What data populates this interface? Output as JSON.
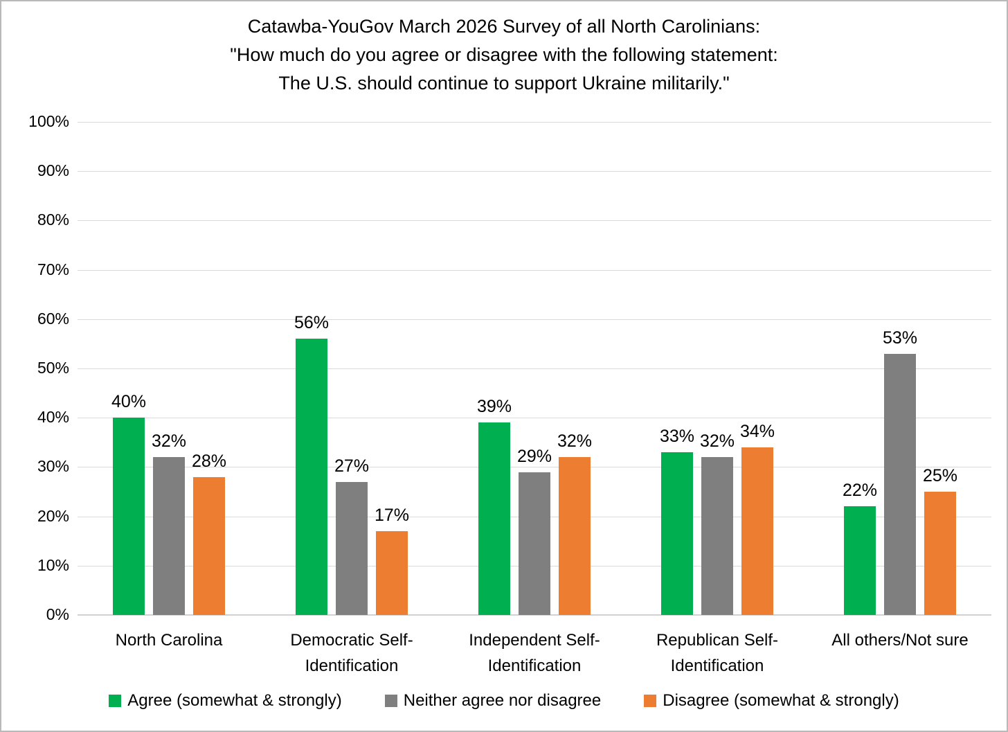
{
  "title": {
    "line1": "Catawba-YouGov March 2026 Survey of all North Carolinians:",
    "line2": "\"How much do you agree or disagree with the following statement:",
    "line3": "The U.S. should continue to support Ukraine militarily.\""
  },
  "chart_data": {
    "type": "bar",
    "title": "Catawba-YouGov March 2026 Survey of all North Carolinians: \"How much do you agree or disagree with the following statement: The U.S. should continue to support Ukraine militarily.\"",
    "categories": [
      "North Carolina",
      "Democratic Self-Identification",
      "Independent Self-Identification",
      "Republican Self-Identification",
      "All others/Not sure"
    ],
    "categories_display": [
      "North Carolina",
      "Democratic Self-\nIdentification",
      "Independent Self-\nIdentification",
      "Republican Self-\nIdentification",
      "All others/Not sure"
    ],
    "series": [
      {
        "name": "Agree (somewhat & strongly)",
        "color": "#00B050",
        "values": [
          40,
          56,
          39,
          33,
          22
        ]
      },
      {
        "name": "Neither agree nor disagree",
        "color": "#7F7F7F",
        "values": [
          32,
          27,
          29,
          32,
          53
        ]
      },
      {
        "name": "Disagree (somewhat & strongly)",
        "color": "#ED7D31",
        "values": [
          28,
          17,
          32,
          34,
          25
        ]
      }
    ],
    "data_label_suffix": "%",
    "xlabel": "",
    "ylabel": "",
    "ylim": [
      0,
      100
    ],
    "ytick_step": 10,
    "ytick_labels": [
      "0%",
      "10%",
      "20%",
      "30%",
      "40%",
      "50%",
      "60%",
      "70%",
      "80%",
      "90%",
      "100%"
    ],
    "grid": true,
    "legend_position": "bottom",
    "colors": {
      "gridline": "#D9D9D9",
      "axis_line": "#D2D2D2",
      "text": "#000000",
      "background": "#FFFFFF",
      "frame_border": "#B9B9B9"
    }
  }
}
